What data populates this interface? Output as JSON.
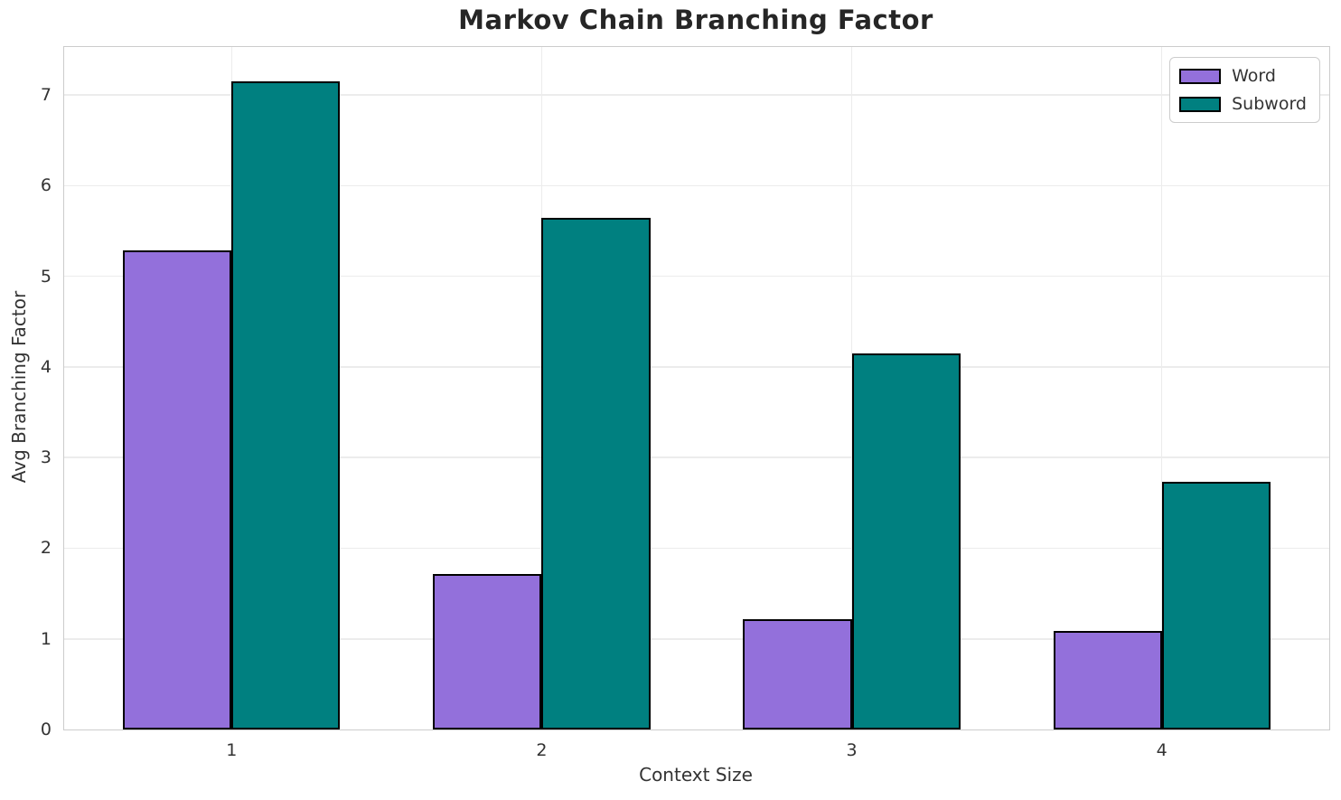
{
  "title": "Markov Chain Branching Factor",
  "colors": {
    "word_fill": "#9370DB",
    "subword_fill": "#008080",
    "bar_edge": "#000000",
    "grid": "#ececec",
    "spine": "#cccccc",
    "text": "#333333",
    "title_text": "#262626"
  },
  "chart_data": {
    "type": "bar",
    "title": "Markov Chain Branching Factor",
    "xlabel": "Context Size",
    "ylabel": "Avg Branching Factor",
    "categories": [
      "1",
      "2",
      "3",
      "4"
    ],
    "series": [
      {
        "name": "Word",
        "color": "#9370DB",
        "values": [
          5.29,
          1.72,
          1.22,
          1.09
        ]
      },
      {
        "name": "Subword",
        "color": "#008080",
        "values": [
          7.15,
          5.65,
          4.15,
          2.73
        ]
      }
    ],
    "yticks": [
      0,
      1,
      2,
      3,
      4,
      5,
      6,
      7
    ],
    "ylim": [
      0,
      7.53
    ],
    "xlim": [
      -0.54,
      3.54
    ],
    "bar_width": 0.35,
    "grid": true,
    "legend_position": "upper right",
    "legend_labels": [
      "Word",
      "Subword"
    ]
  }
}
